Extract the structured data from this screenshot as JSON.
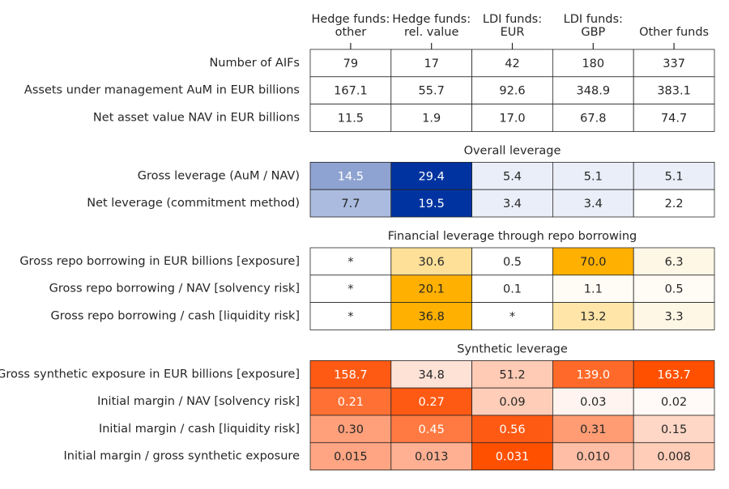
{
  "columns": [
    [
      "Hedge funds:",
      "other"
    ],
    [
      "Hedge funds:",
      "rel. value"
    ],
    [
      "LDI funds:",
      "EUR"
    ],
    [
      "LDI funds:",
      "GBP"
    ],
    [
      "Other funds"
    ]
  ],
  "sections": [
    {
      "rows": [
        {
          "label": "Number of AIFs",
          "cells": [
            "79",
            "17",
            "42",
            "180",
            "337"
          ],
          "colors": [
            "#ffffff",
            "#ffffff",
            "#ffffff",
            "#ffffff",
            "#ffffff"
          ]
        },
        {
          "label": "Assets under management AuM in EUR billions",
          "cells": [
            "167.1",
            "55.7",
            "92.6",
            "348.9",
            "383.1"
          ],
          "colors": [
            "#ffffff",
            "#ffffff",
            "#ffffff",
            "#ffffff",
            "#ffffff"
          ]
        },
        {
          "label": "Net asset value NAV in EUR billions",
          "cells": [
            "11.5",
            "1.9",
            "17.0",
            "67.8",
            "74.7"
          ],
          "colors": [
            "#ffffff",
            "#ffffff",
            "#ffffff",
            "#ffffff",
            "#ffffff"
          ]
        }
      ]
    },
    {
      "title": "Overall leverage",
      "rows": [
        {
          "label": "Gross leverage (AuM / NAV)",
          "cells": [
            "14.5",
            "29.4",
            "5.4",
            "5.1",
            "5.1"
          ],
          "colors": [
            "#8fa3d2",
            "#0033a0",
            "#eaeef8",
            "#eaeef8",
            "#eaeef8"
          ]
        },
        {
          "label": "Net leverage (commitment method)",
          "cells": [
            "7.7",
            "19.5",
            "3.4",
            "3.4",
            "2.2"
          ],
          "colors": [
            "#aabbdf",
            "#0033a0",
            "#eaeef8",
            "#eaeef8",
            "#ffffff"
          ]
        }
      ]
    },
    {
      "title": "Financial leverage through repo borrowing",
      "rows": [
        {
          "label": "Gross repo borrowing in EUR billions [exposure]",
          "cells": [
            "*",
            "30.6",
            "0.5",
            "70.0",
            "6.3"
          ],
          "colors": [
            "#ffffff",
            "#ffe099",
            "#ffffff",
            "#ffb000",
            "#fff7e6"
          ]
        },
        {
          "label": "Gross repo borrowing / NAV [solvency risk]",
          "cells": [
            "*",
            "20.1",
            "0.1",
            "1.1",
            "0.5"
          ],
          "colors": [
            "#ffffff",
            "#ffb000",
            "#ffffff",
            "#fffcf5",
            "#fffcf5"
          ]
        },
        {
          "label": "Gross repo borrowing / cash [liquidity risk]",
          "cells": [
            "*",
            "36.8",
            "*",
            "13.2",
            "3.3"
          ],
          "colors": [
            "#ffffff",
            "#ffb000",
            "#ffffff",
            "#ffe5a8",
            "#fff7e6"
          ]
        }
      ]
    },
    {
      "title": "Synthetic leverage",
      "rows": [
        {
          "label": "Gross synthetic exposure in EUR billions [exposure]",
          "cells": [
            "158.7",
            "34.8",
            "51.2",
            "139.0",
            "163.7"
          ],
          "colors": [
            "#ff5a14",
            "#ffe2d6",
            "#ffcbb5",
            "#ff6a2a",
            "#ff5000"
          ]
        },
        {
          "label": "Initial margin / NAV [solvency risk]",
          "cells": [
            "0.21",
            "0.27",
            "0.09",
            "0.03",
            "0.02"
          ],
          "colors": [
            "#ff7034",
            "#ff5a14",
            "#ffcdb8",
            "#fff4ef",
            "#fffaf7"
          ]
        },
        {
          "label": "Initial margin / cash [liquidity risk]",
          "cells": [
            "0.30",
            "0.45",
            "0.56",
            "0.31",
            "0.15"
          ],
          "colors": [
            "#ffa07a",
            "#ff7a42",
            "#ff5a14",
            "#ff9c74",
            "#ffd7c6"
          ]
        },
        {
          "label": "Initial margin / gross synthetic exposure",
          "cells": [
            "0.015",
            "0.013",
            "0.031",
            "0.010",
            "0.008"
          ],
          "colors": [
            "#ffa583",
            "#ffb092",
            "#ff5000",
            "#ffbea5",
            "#ffcdb8"
          ]
        }
      ]
    }
  ]
}
